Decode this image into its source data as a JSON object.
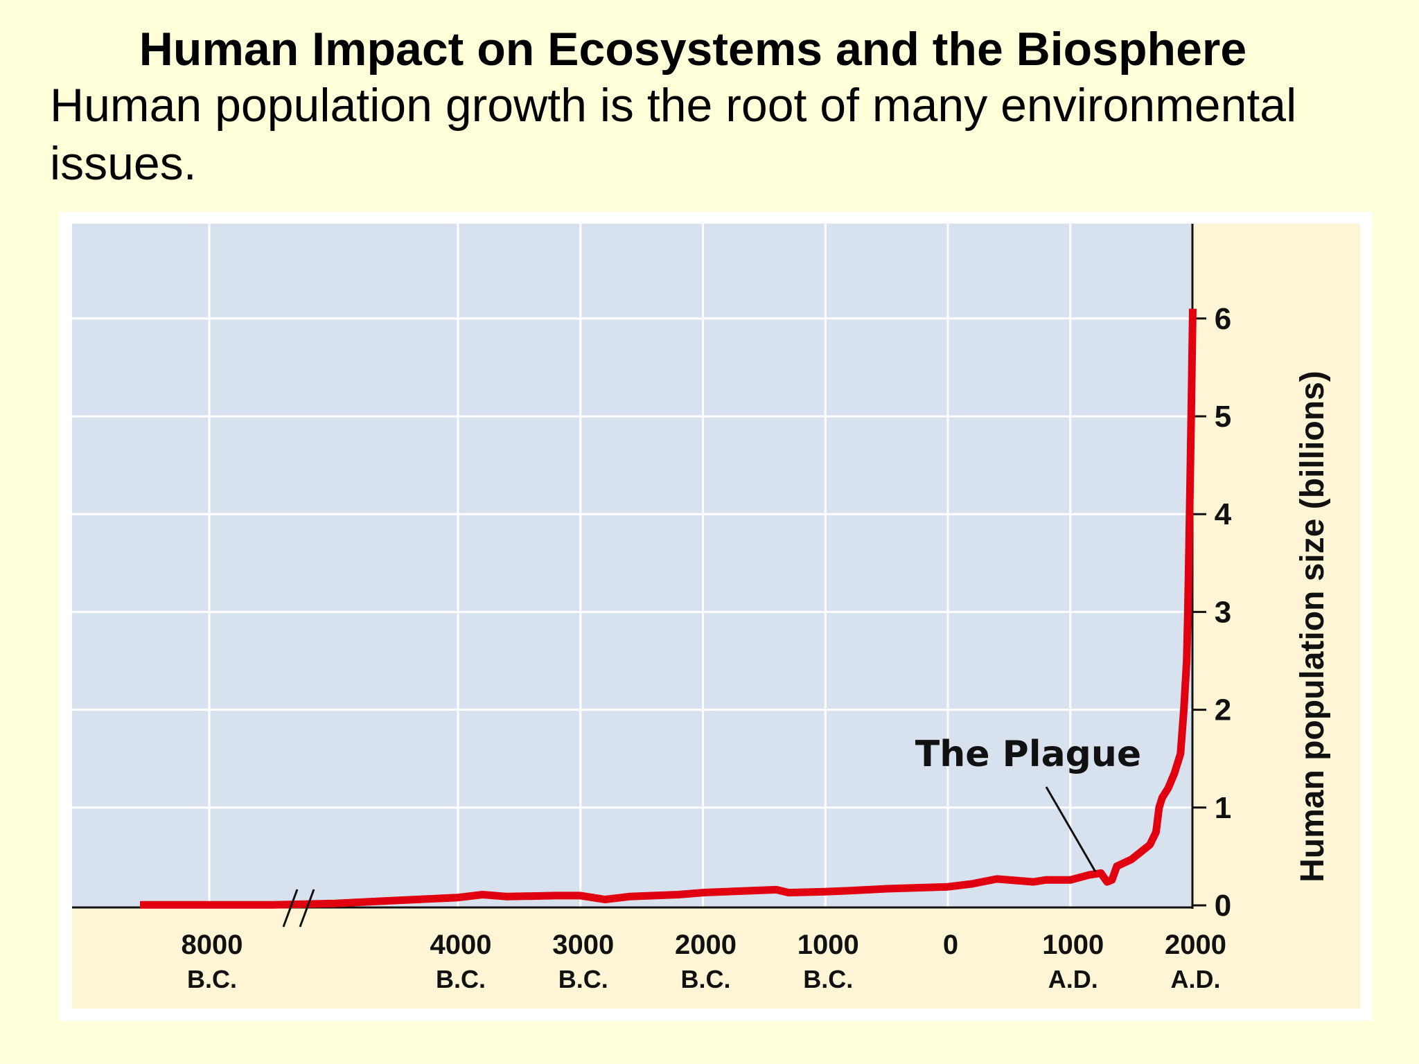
{
  "slide": {
    "title": "Human Impact on Ecosystems and the Biosphere",
    "subtitle": "Human population growth is the root of many environmental issues."
  },
  "chart_data": {
    "type": "line",
    "ylabel": "Human population size (billions)",
    "xlabel": "",
    "ylim": [
      0,
      7
    ],
    "y_ticks": [
      0,
      1,
      2,
      3,
      4,
      5,
      6
    ],
    "x_ticks": [
      {
        "value": -8000,
        "year": "8000",
        "era": "B.C."
      },
      {
        "value": -4000,
        "year": "4000",
        "era": "B.C."
      },
      {
        "value": -3000,
        "year": "3000",
        "era": "B.C."
      },
      {
        "value": -2000,
        "year": "2000",
        "era": "B.C."
      },
      {
        "value": -1000,
        "year": "1000",
        "era": "B.C."
      },
      {
        "value": 0,
        "year": "0",
        "era": ""
      },
      {
        "value": 1000,
        "year": "1000",
        "era": "A.D."
      },
      {
        "value": 2000,
        "year": "2000",
        "era": "A.D."
      }
    ],
    "axis_break": "between 8000 B.C. and 4000 B.C.",
    "grid": true,
    "colors": {
      "line": "#e0000f",
      "plot_background": "#d8e2ef",
      "axis_background": "#fdf5d6"
    },
    "series": [
      {
        "x": [
          -9000,
          -8000,
          -7000,
          -6000,
          -5000,
          -4000,
          -3800,
          -3600,
          -3200,
          -3000,
          -2800,
          -2600,
          -2200,
          -2000,
          -1600,
          -1400,
          -1300,
          -1000,
          -800,
          -500,
          0,
          200,
          400,
          700,
          800,
          1000,
          1150,
          1250,
          1300,
          1340,
          1380,
          1500,
          1650,
          1700,
          1725,
          1750,
          1800,
          1850,
          1900,
          1927,
          1950,
          1960,
          1974,
          1987,
          1999,
          2000
        ],
        "y": [
          0.005,
          0.005,
          0.005,
          0.02,
          0.05,
          0.08,
          0.11,
          0.09,
          0.1,
          0.1,
          0.06,
          0.09,
          0.11,
          0.13,
          0.15,
          0.16,
          0.13,
          0.14,
          0.15,
          0.17,
          0.19,
          0.22,
          0.27,
          0.24,
          0.26,
          0.26,
          0.31,
          0.33,
          0.24,
          0.26,
          0.4,
          0.47,
          0.62,
          0.75,
          1.0,
          1.1,
          1.2,
          1.35,
          1.55,
          2.0,
          2.5,
          3.0,
          4.0,
          5.0,
          6.0,
          6.1
        ]
      }
    ],
    "annotation": {
      "label": "The Plague",
      "target_x": 1340,
      "target_y": 0.26
    }
  }
}
